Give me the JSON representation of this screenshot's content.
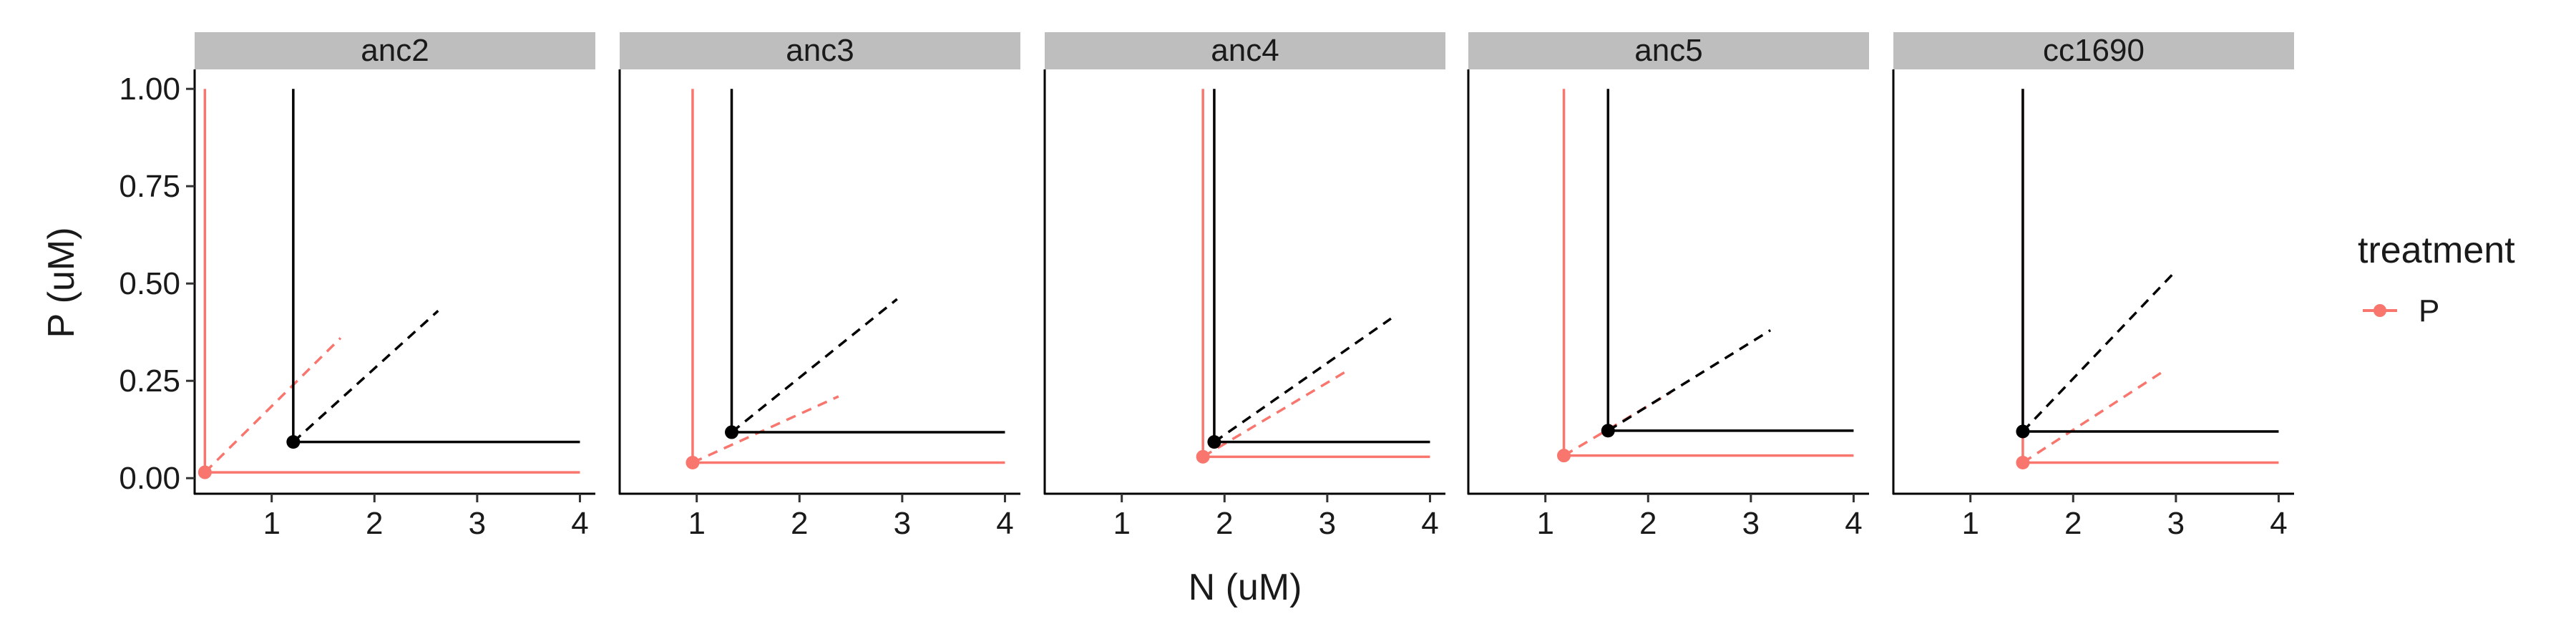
{
  "chart_data": {
    "type": "line",
    "panels": [
      {
        "label": "anc2",
        "series": [
          {
            "color": "#000000",
            "point": [
              1.21,
              0.093
            ],
            "zngi_end": [
              4,
              0.093
            ],
            "top": 1.0,
            "supply_end": [
              2.62,
              0.43
            ]
          },
          {
            "color": "#F8766D",
            "point": [
              0.35,
              0.015
            ],
            "zngi_end": [
              4,
              0.015
            ],
            "top": 1.0,
            "supply_end": [
              1.67,
              0.36
            ]
          }
        ]
      },
      {
        "label": "anc3",
        "series": [
          {
            "color": "#000000",
            "point": [
              1.34,
              0.118
            ],
            "zngi_end": [
              4,
              0.118
            ],
            "top": 1.0,
            "supply_end": [
              2.95,
              0.46
            ]
          },
          {
            "color": "#F8766D",
            "point": [
              0.96,
              0.04
            ],
            "zngi_end": [
              4,
              0.04
            ],
            "top": 1.0,
            "supply_end": [
              2.38,
              0.21
            ]
          }
        ]
      },
      {
        "label": "anc4",
        "series": [
          {
            "color": "#000000",
            "point": [
              1.9,
              0.093
            ],
            "zngi_end": [
              4,
              0.093
            ],
            "top": 1.0,
            "supply_end": [
              3.62,
              0.41
            ]
          },
          {
            "color": "#F8766D",
            "point": [
              1.79,
              0.055
            ],
            "zngi_end": [
              4,
              0.055
            ],
            "top": 1.0,
            "supply_end": [
              3.22,
              0.28
            ]
          }
        ]
      },
      {
        "label": "anc5",
        "series": [
          {
            "color": "#000000",
            "point": [
              1.61,
              0.122
            ],
            "zngi_end": [
              4,
              0.122
            ],
            "top": 1.0,
            "supply_end": [
              3.19,
              0.38
            ]
          },
          {
            "color": "#F8766D",
            "point": [
              1.18,
              0.058
            ],
            "zngi_end": [
              4,
              0.058
            ],
            "top": 1.0,
            "supply_end": [
              2.22,
              0.22
            ]
          }
        ]
      },
      {
        "label": "cc1690",
        "series": [
          {
            "color": "#000000",
            "point": [
              1.51,
              0.12
            ],
            "zngi_end": [
              4,
              0.12
            ],
            "top": 1.0,
            "supply_end": [
              2.99,
              0.53
            ]
          },
          {
            "color": "#F8766D",
            "point": [
              1.51,
              0.04
            ],
            "zngi_end": [
              4,
              0.04
            ],
            "top": 1.0,
            "supply_end": [
              2.91,
              0.28
            ]
          }
        ]
      }
    ],
    "xlabel": "N (uM)",
    "ylabel": "P (uM)",
    "xlim": [
      0.25,
      4.15
    ],
    "ylim": [
      -0.04,
      1.05
    ],
    "x_ticks": [
      1,
      2,
      3,
      4
    ],
    "x_tick_labels": [
      "1",
      "2",
      "3",
      "4"
    ],
    "y_ticks": [
      0,
      0.25,
      0.5,
      0.75,
      1
    ],
    "y_tick_labels": [
      "0.00",
      "0.25",
      "0.50",
      "0.75",
      "1.00"
    ],
    "grid": false,
    "legend": {
      "title": "treatment",
      "position": "right",
      "items": [
        {
          "label": "P",
          "color": "#F8766D"
        }
      ]
    },
    "strip_color": "#BEBEBE"
  }
}
